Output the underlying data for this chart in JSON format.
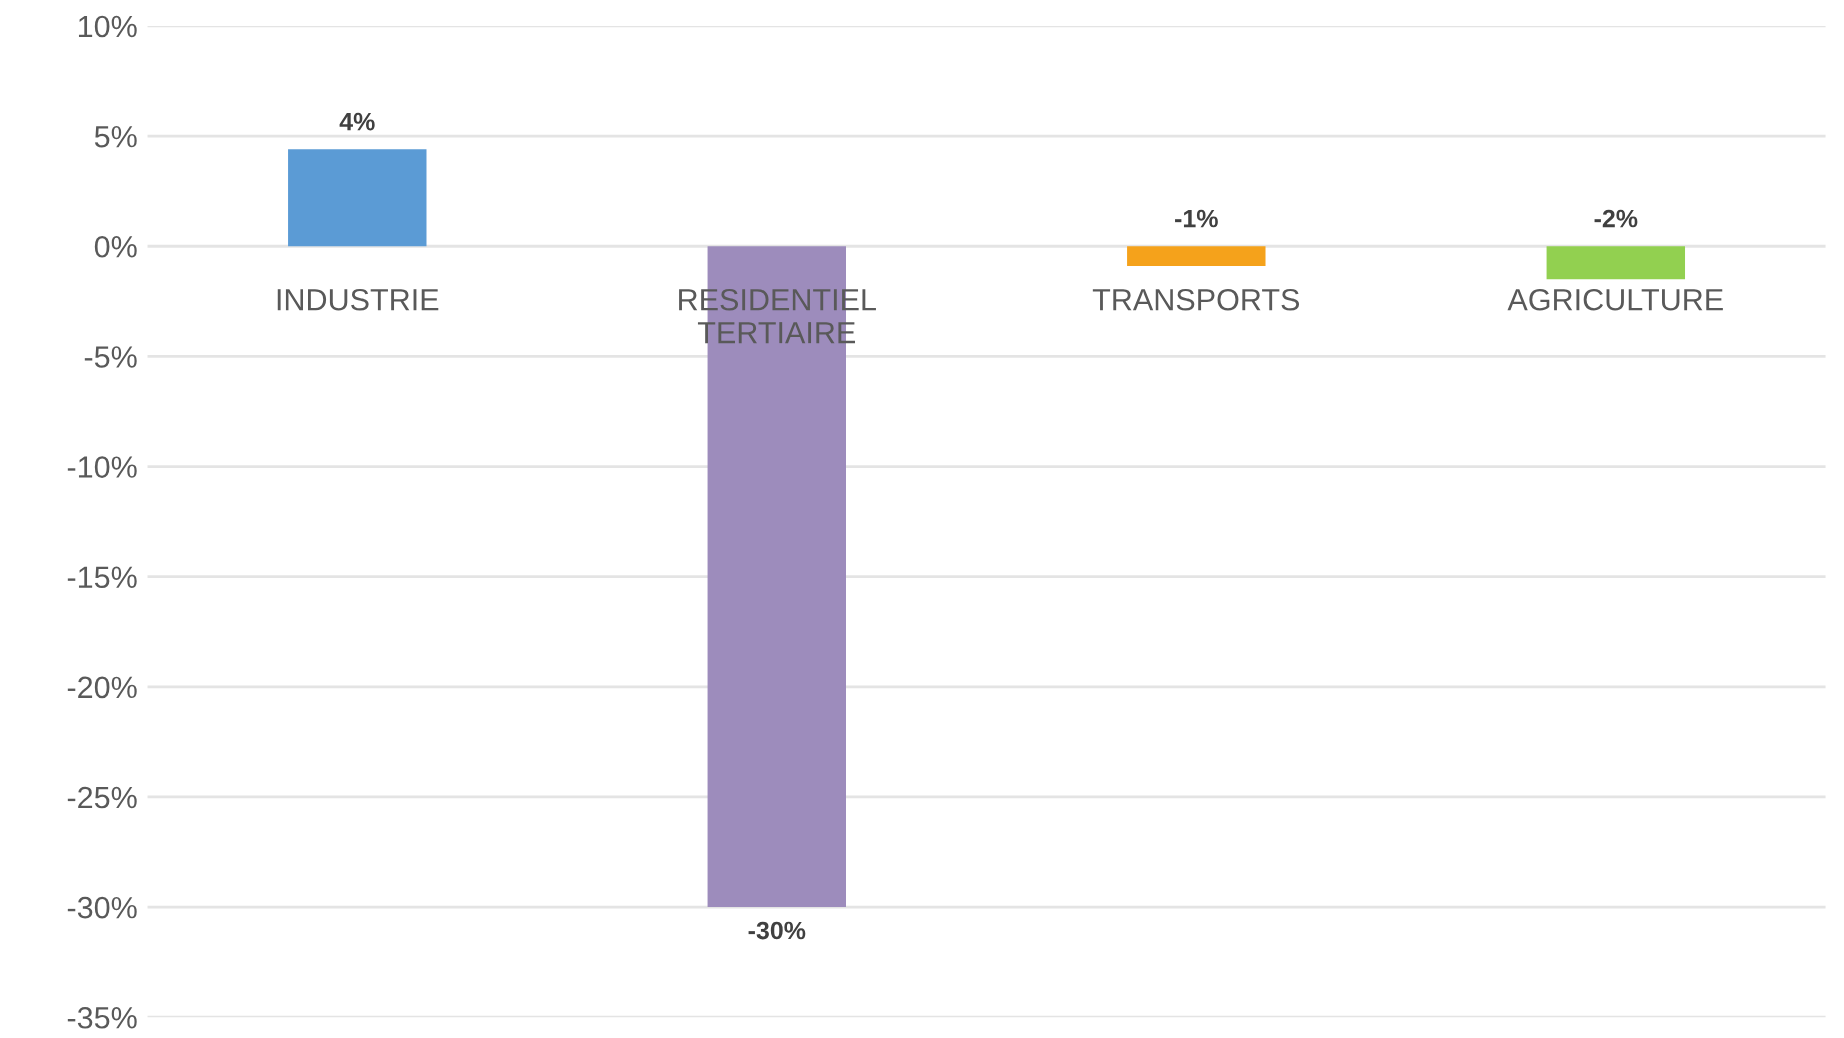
{
  "chart_data": {
    "type": "bar",
    "categories": [
      "INDUSTRIE",
      "RESIDENTIEL\nTERTIAIRE",
      "TRANSPORTS",
      "AGRICULTURE"
    ],
    "values": [
      4.4,
      -30,
      -0.9,
      -1.5
    ],
    "colors": [
      "#5b9bd5",
      "#9d8cbc",
      "#f5a21b",
      "#92d050"
    ],
    "value_labels": [
      "4%",
      "-30%",
      "-1%",
      "-2%"
    ],
    "ylim": [
      -35,
      10
    ],
    "yticks": [
      {
        "value": 10,
        "label": "10%"
      },
      {
        "value": 5,
        "label": "5%"
      },
      {
        "value": 0,
        "label": "0%"
      },
      {
        "value": -5,
        "label": "-5%"
      },
      {
        "value": -10,
        "label": "-10%"
      },
      {
        "value": -15,
        "label": "-15%"
      },
      {
        "value": -20,
        "label": "-20%"
      },
      {
        "value": -25,
        "label": "-25%"
      },
      {
        "value": -30,
        "label": "-30%"
      },
      {
        "value": -35,
        "label": "-35%"
      }
    ],
    "grid": "y"
  }
}
